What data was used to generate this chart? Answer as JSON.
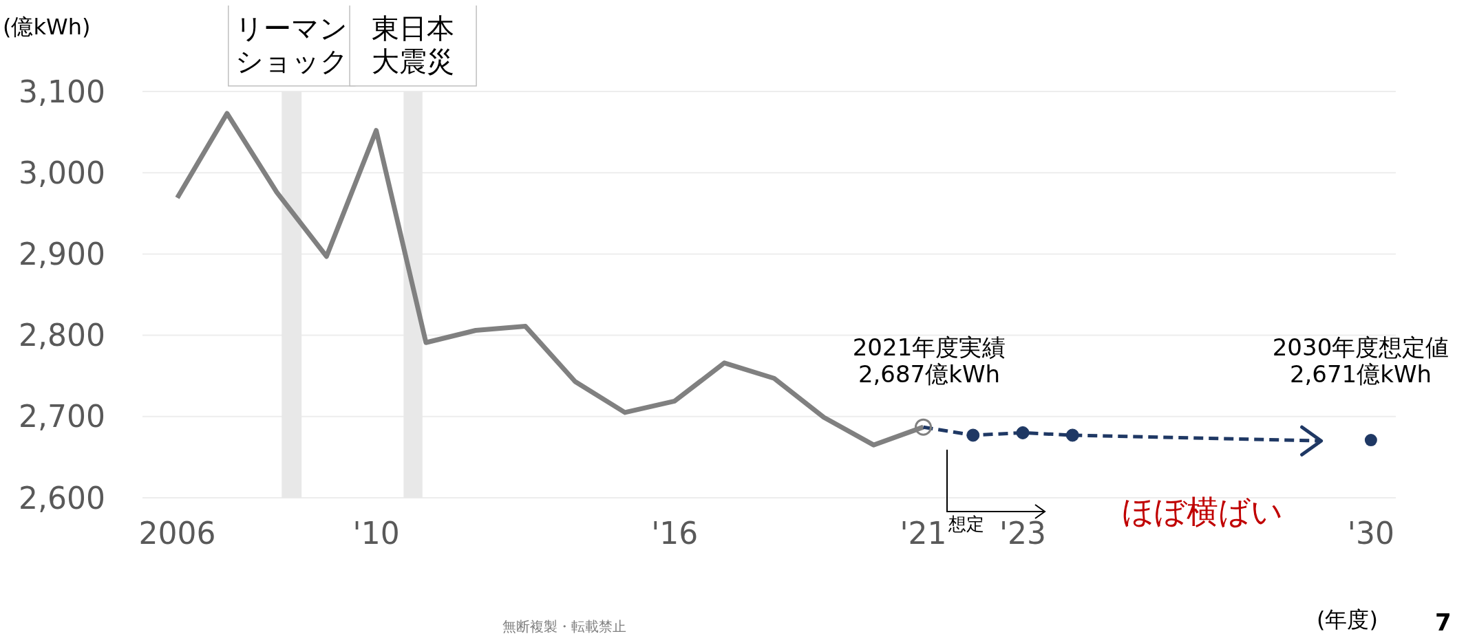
{
  "chart_data": {
    "type": "line",
    "ylabel": "(億kWh)",
    "xlabel": "(年度)",
    "xlim": [
      2005.3,
      2030.5
    ],
    "xticks": [
      {
        "value": 2006,
        "label": "2006"
      },
      {
        "value": 2010,
        "label": "'10"
      },
      {
        "value": 2016,
        "label": "'16"
      },
      {
        "value": 2021,
        "label": "'21"
      },
      {
        "value": 2023,
        "label": "'23"
      },
      {
        "value": 2030,
        "label": "'30"
      }
    ],
    "ylim": [
      2600,
      3100
    ],
    "yticks": [
      {
        "value": 2600,
        "label": "2,600"
      },
      {
        "value": 2700,
        "label": "2,700"
      },
      {
        "value": 2800,
        "label": "2,800"
      },
      {
        "value": 2900,
        "label": "2,900"
      },
      {
        "value": 3000,
        "label": "3,000"
      },
      {
        "value": 3100,
        "label": "3,100"
      }
    ],
    "grid": "y",
    "series": [
      {
        "color": "#808080",
        "line_style": "solid",
        "marker": "none",
        "x": [
          2006,
          2007,
          2008,
          2009,
          2010,
          2011,
          2012,
          2013,
          2014,
          2015,
          2016,
          2017,
          2018,
          2019,
          2020,
          2021
        ],
        "values": [
          2969,
          3073,
          2976,
          2897,
          3052,
          2791,
          2806,
          2811,
          2743,
          2705,
          2719,
          2766,
          2747,
          2699,
          2665,
          2687
        ]
      },
      {
        "color": "#1f3864",
        "line_style": "dashed",
        "marker": "circle",
        "x": [
          2021,
          2022,
          2023,
          2024
        ],
        "values": [
          2687,
          2677,
          2680,
          2677
        ]
      },
      {
        "color": "#1f3864",
        "line_style": "dashed",
        "marker": "none",
        "x": [
          2024,
          2029
        ],
        "values": [
          2677,
          2670
        ]
      },
      {
        "type": "scatter",
        "color": "#1f3864",
        "marker": "circle",
        "x": [
          2030
        ],
        "values": [
          2671
        ]
      }
    ],
    "bands": [
      {
        "axis": "x",
        "from": 2008.1,
        "to": 2008.5,
        "label": "リーマンショック",
        "color": "#e8e8e8"
      },
      {
        "axis": "x",
        "from": 2010.55,
        "to": 2010.93,
        "label": "東日本大震災",
        "color": "#e8e8e8"
      }
    ],
    "annotations": [
      "2021年度実績\n2,687億kWh",
      "2030年度想定値\n2,671億kWh",
      "想定",
      "ほぼ横ばい",
      "7",
      "無断複製・転載禁止"
    ]
  }
}
